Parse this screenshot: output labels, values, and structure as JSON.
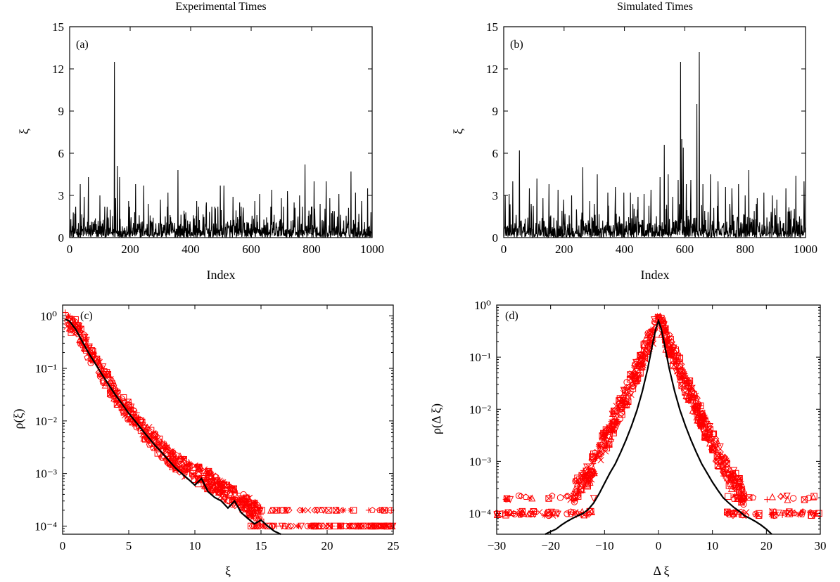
{
  "colors": {
    "black": "#000000",
    "red": "#ff0000"
  },
  "chart_data": [
    {
      "id": "a",
      "type": "line",
      "title": "Experimental Times",
      "panel_label": "(a)",
      "xlabel": "Index",
      "ylabel": "ξ",
      "xlim": [
        0,
        1000
      ],
      "ylim": [
        0,
        15
      ],
      "xticks": [
        0,
        200,
        400,
        600,
        800,
        1000
      ],
      "xtick_labels": [
        "0",
        "200",
        "400",
        "600",
        "800",
        "1000"
      ],
      "yticks": [
        0,
        3,
        6,
        9,
        12,
        15
      ],
      "ytick_labels": [
        "0",
        "3",
        "6",
        "9",
        "12",
        "15"
      ],
      "grid": false,
      "series": [
        {
          "color": "#000000",
          "baseline_range": [
            0,
            2.2
          ],
          "peaks": [
            [
              35,
              3.8
            ],
            [
              48,
              2.9
            ],
            [
              62,
              4.3
            ],
            [
              100,
              3.0
            ],
            [
              148,
              12.5
            ],
            [
              152,
              2.8
            ],
            [
              158,
              5.1
            ],
            [
              165,
              4.3
            ],
            [
              195,
              2.6
            ],
            [
              218,
              3.8
            ],
            [
              245,
              3.7
            ],
            [
              260,
              2.4
            ],
            [
              300,
              2.7
            ],
            [
              325,
              3.2
            ],
            [
              358,
              4.8
            ],
            [
              420,
              2.6
            ],
            [
              452,
              2.5
            ],
            [
              498,
              3.7
            ],
            [
              510,
              3.7
            ],
            [
              540,
              2.9
            ],
            [
              562,
              2.5
            ],
            [
              612,
              2.6
            ],
            [
              628,
              3.1
            ],
            [
              668,
              3.4
            ],
            [
              700,
              2.8
            ],
            [
              720,
              3.3
            ],
            [
              742,
              2.5
            ],
            [
              760,
              3.0
            ],
            [
              778,
              5.2
            ],
            [
              808,
              4.0
            ],
            [
              828,
              2.4
            ],
            [
              848,
              4.0
            ],
            [
              860,
              2.8
            ],
            [
              890,
              3.1
            ],
            [
              930,
              4.7
            ],
            [
              945,
              3.2
            ],
            [
              965,
              2.6
            ],
            [
              985,
              3.5
            ]
          ]
        }
      ]
    },
    {
      "id": "b",
      "type": "line",
      "title": "Simulated Times",
      "panel_label": "(b)",
      "xlabel": "Index",
      "ylabel": "ξ",
      "xlim": [
        0,
        1000
      ],
      "ylim": [
        0,
        15
      ],
      "xticks": [
        0,
        200,
        400,
        600,
        800,
        1000
      ],
      "xtick_labels": [
        "0",
        "200",
        "400",
        "600",
        "800",
        "1000"
      ],
      "yticks": [
        0,
        3,
        6,
        9,
        12,
        15
      ],
      "ytick_labels": [
        "0",
        "3",
        "6",
        "9",
        "12",
        "15"
      ],
      "grid": false,
      "series": [
        {
          "color": "#000000",
          "baseline_range": [
            0,
            2.4
          ],
          "peaks": [
            [
              5,
              3.0
            ],
            [
              18,
              3.1
            ],
            [
              30,
              4.0
            ],
            [
              52,
              6.2
            ],
            [
              85,
              3.5
            ],
            [
              110,
              4.2
            ],
            [
              130,
              2.8
            ],
            [
              150,
              3.8
            ],
            [
              180,
              3.4
            ],
            [
              198,
              2.7
            ],
            [
              225,
              3.0
            ],
            [
              262,
              5.0
            ],
            [
              285,
              2.6
            ],
            [
              310,
              4.5
            ],
            [
              345,
              3.2
            ],
            [
              370,
              3.6
            ],
            [
              398,
              3.2
            ],
            [
              420,
              3.2
            ],
            [
              445,
              2.9
            ],
            [
              465,
              3.1
            ],
            [
              488,
              3.4
            ],
            [
              518,
              4.3
            ],
            [
              532,
              6.6
            ],
            [
              545,
              4.5
            ],
            [
              560,
              2.9
            ],
            [
              578,
              4.1
            ],
            [
              586,
              12.5
            ],
            [
              590,
              7.0
            ],
            [
              595,
              6.4
            ],
            [
              605,
              3.8
            ],
            [
              620,
              4.1
            ],
            [
              640,
              9.5
            ],
            [
              648,
              13.2
            ],
            [
              660,
              3.8
            ],
            [
              685,
              4.5
            ],
            [
              710,
              4.0
            ],
            [
              735,
              3.6
            ],
            [
              756,
              3.5
            ],
            [
              778,
              3.8
            ],
            [
              800,
              3.0
            ],
            [
              812,
              4.8
            ],
            [
              840,
              2.8
            ],
            [
              862,
              3.2
            ],
            [
              890,
              3.0
            ],
            [
              905,
              2.7
            ],
            [
              935,
              3.5
            ],
            [
              968,
              4.4
            ],
            [
              995,
              4.0
            ]
          ]
        }
      ]
    },
    {
      "id": "c",
      "type": "scatter",
      "panel_label": "(c)",
      "xlabel": "ξ",
      "ylabel": "ρ(ξ)",
      "xlim": [
        0,
        25
      ],
      "ylim": [
        7e-05,
        1.6
      ],
      "log_y": true,
      "xticks": [
        0,
        5,
        10,
        15,
        20,
        25
      ],
      "xtick_labels": [
        "0",
        "5",
        "10",
        "15",
        "20",
        "25"
      ],
      "yticks": [
        1,
        0.1,
        0.01,
        0.001,
        0.0001
      ],
      "ytick_labels": [
        "10⁰",
        "10⁻¹",
        "10⁻²",
        "10⁻³",
        "10⁻⁴"
      ],
      "grid": false,
      "curve": {
        "color": "#000000",
        "x": [
          0.2,
          0.5,
          1,
          1.5,
          2,
          2.5,
          3,
          3.5,
          4,
          4.5,
          5,
          5.5,
          6,
          6.5,
          7,
          7.5,
          8,
          8.5,
          9,
          9.5,
          10,
          10.5,
          11,
          11.5,
          12,
          12.5,
          13,
          13.5,
          14,
          14.5,
          15,
          15.5,
          16,
          16.5
        ],
        "y": [
          0.85,
          0.8,
          0.55,
          0.32,
          0.19,
          0.12,
          0.075,
          0.048,
          0.031,
          0.021,
          0.014,
          0.0098,
          0.0068,
          0.0048,
          0.0034,
          0.0025,
          0.0018,
          0.0013,
          0.001,
          0.00078,
          0.0006,
          0.0008,
          0.00045,
          0.00035,
          0.0003,
          0.00022,
          0.0003,
          0.00018,
          0.00014,
          0.00011,
          0.00013,
          0.0001,
          8e-05,
          7e-05
        ]
      },
      "markers": {
        "color": "#ff0000",
        "symbols": [
          "circle",
          "square",
          "triangle-up",
          "triangle-down",
          "diamond",
          "pentagon",
          "plus",
          "cross",
          "asterisk",
          "boxed-cross"
        ],
        "envelope": [
          [
            0.2,
            0.9
          ],
          [
            1,
            0.6
          ],
          [
            2,
            0.2
          ],
          [
            3,
            0.08
          ],
          [
            4,
            0.033
          ],
          [
            5,
            0.015
          ],
          [
            6,
            0.0075
          ],
          [
            7,
            0.0038
          ],
          [
            8,
            0.0022
          ],
          [
            9,
            0.0014
          ],
          [
            10,
            0.001
          ],
          [
            11,
            0.00075
          ],
          [
            12,
            0.0005
          ],
          [
            13,
            0.00036
          ],
          [
            14,
            0.00025
          ],
          [
            15,
            0.00017
          ]
        ],
        "tail_x_range": [
          14,
          25
        ],
        "tail_levels": [
          0.0001,
          0.0002
        ]
      }
    },
    {
      "id": "d",
      "type": "scatter",
      "panel_label": "(d)",
      "xlabel": "Δ ξ",
      "ylabel": "ρ(Δ ξ)",
      "xlim": [
        -30,
        30
      ],
      "ylim": [
        4e-05,
        1
      ],
      "log_y": true,
      "xticks": [
        -30,
        -20,
        -10,
        0,
        10,
        20,
        30
      ],
      "xtick_labels": [
        "−30",
        "−20",
        "−10",
        "0",
        "10",
        "20",
        "30"
      ],
      "yticks": [
        1,
        0.1,
        0.01,
        0.001,
        0.0001
      ],
      "ytick_labels": [
        "10⁰",
        "10⁻¹",
        "10⁻²",
        "10⁻³",
        "10⁻⁴"
      ],
      "grid": false,
      "curve": {
        "color": "#000000",
        "x": [
          -21,
          -20,
          -19,
          -18,
          -17,
          -16,
          -15,
          -14,
          -13,
          -12,
          -11,
          -10,
          -9,
          -8,
          -7,
          -6,
          -5,
          -4,
          -3,
          -2,
          -1,
          -0.5,
          0,
          0.5,
          1,
          2,
          3,
          4,
          5,
          6,
          7,
          8,
          9,
          10,
          11,
          12,
          13,
          14,
          15,
          16,
          17,
          18,
          19,
          20,
          21
        ],
        "y": [
          4e-05,
          4.5e-05,
          5e-05,
          6e-05,
          7e-05,
          8e-05,
          9e-05,
          0.0001,
          0.00012,
          0.00016,
          0.00024,
          0.00038,
          0.0006,
          0.0009,
          0.0015,
          0.0026,
          0.0048,
          0.0095,
          0.022,
          0.06,
          0.2,
          0.35,
          0.5,
          0.35,
          0.2,
          0.06,
          0.022,
          0.0095,
          0.0048,
          0.0026,
          0.0015,
          0.0009,
          0.0006,
          0.0004,
          0.00028,
          0.0002,
          0.00016,
          0.00013,
          0.00011,
          9e-05,
          8e-05,
          7e-05,
          6e-05,
          5e-05,
          4e-05
        ]
      },
      "markers": {
        "color": "#ff0000",
        "symbols": [
          "circle",
          "square",
          "triangle-up",
          "triangle-down",
          "diamond",
          "pentagon",
          "plus",
          "cross",
          "asterisk",
          "boxed-cross"
        ],
        "core_decay": 0.55,
        "peak": 0.5,
        "tail_x_range": [
          12,
          30
        ],
        "tail_levels": [
          0.0001,
          0.0002
        ]
      }
    }
  ]
}
